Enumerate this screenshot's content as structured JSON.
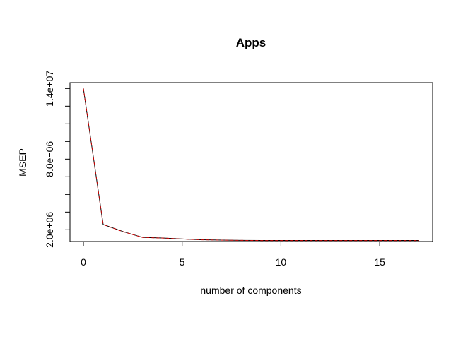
{
  "chart_data": {
    "type": "line",
    "title": "Apps",
    "xlabel": "number of components",
    "ylabel": "MSEP",
    "xlim": [
      -0.68,
      17.68
    ],
    "ylim": [
      1000000,
      14500000
    ],
    "x_ticks": [
      0,
      5,
      10,
      15
    ],
    "y_ticks": [
      2000000,
      5000000,
      8000000,
      11000000,
      14000000
    ],
    "y_tick_labels": [
      "2.0e+06",
      "",
      "8.0e+06",
      "",
      "1.4e+07"
    ],
    "y_minor_ticks": [
      2000000,
      5000000,
      8000000,
      11000000,
      14000000
    ],
    "grid": false,
    "legend": "none",
    "series": [
      {
        "color": "#000000",
        "style": "solid",
        "x": [
          0,
          1,
          2,
          3,
          4,
          5,
          6,
          7,
          8,
          9,
          10,
          11,
          12,
          13,
          14,
          15,
          16,
          17
        ],
        "y": [
          14000000,
          2450000,
          1850000,
          1350000,
          1300000,
          1220000,
          1150000,
          1120000,
          1100000,
          1090000,
          1090000,
          1090000,
          1090000,
          1090000,
          1090000,
          1090000,
          1090000,
          1090000
        ]
      },
      {
        "color": "#cc0000",
        "style": "dashed",
        "x": [
          0,
          1,
          2,
          3,
          4,
          5,
          6,
          7,
          8,
          9,
          10,
          11,
          12,
          13,
          14,
          15,
          16,
          17
        ],
        "y": [
          14000000,
          2440000,
          1840000,
          1345000,
          1295000,
          1215000,
          1145000,
          1115000,
          1095000,
          1085000,
          1085000,
          1085000,
          1085000,
          1085000,
          1085000,
          1085000,
          1085000,
          1085000
        ]
      }
    ]
  }
}
